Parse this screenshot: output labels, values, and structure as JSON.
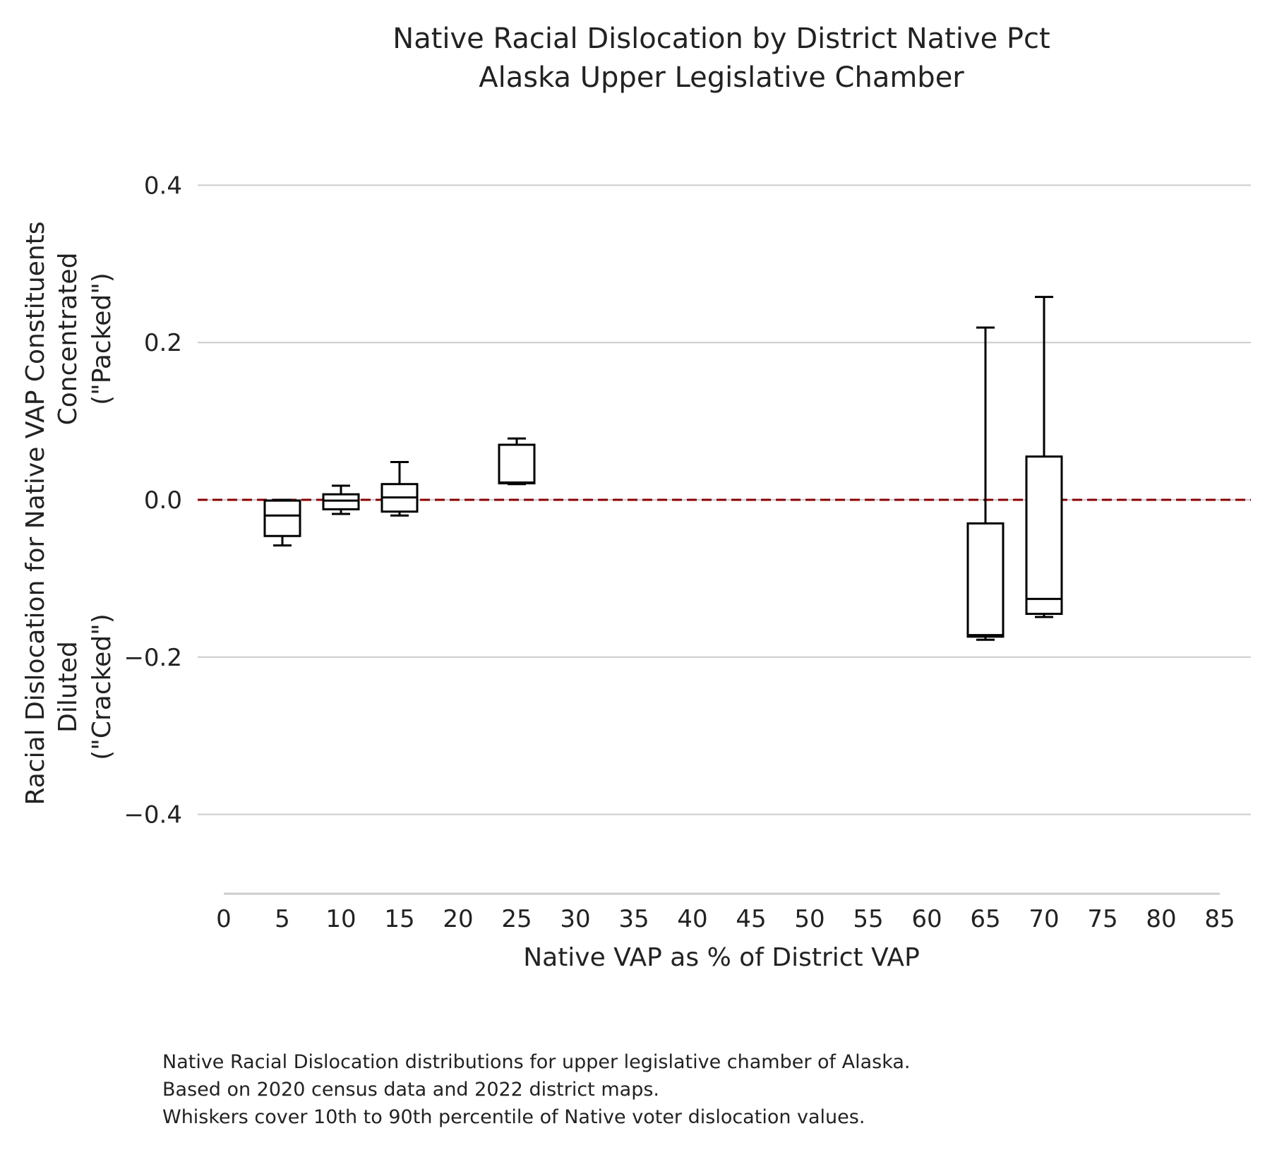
{
  "chart_data": {
    "type": "box",
    "title_lines": [
      "Native Racial Dislocation by District Native Pct",
      "Alaska Upper Legislative Chamber"
    ],
    "xlabel": "Native VAP as % of District VAP",
    "ylabel_lines": [
      "Racial Dislocation for Native VAP Constituents",
      "Diluted",
      "(\"Cracked\")",
      "Concentrated",
      "(\"Packed\")"
    ],
    "x_ticks": [
      0,
      5,
      10,
      15,
      20,
      25,
      30,
      35,
      40,
      45,
      50,
      55,
      60,
      65,
      70,
      75,
      80,
      85
    ],
    "y_ticks": [
      0.4,
      0.2,
      0.0,
      -0.2,
      -0.4
    ],
    "y_tick_labels": [
      "0.4",
      "0.2",
      "0.0",
      "−0.2",
      "−0.4"
    ],
    "xlim": [
      0,
      85
    ],
    "ylim": [
      -0.5,
      0.4
    ],
    "grid": "horizontal",
    "reference_line": {
      "y": 0.0,
      "color": "#8b0000",
      "style": "dashed"
    },
    "boxes": [
      {
        "x": 5,
        "whisker_low": -0.058,
        "q1": -0.046,
        "median": -0.02,
        "q3": -0.001,
        "whisker_high": 0.0
      },
      {
        "x": 10,
        "whisker_low": -0.018,
        "q1": -0.012,
        "median": -0.001,
        "q3": 0.007,
        "whisker_high": 0.018
      },
      {
        "x": 15,
        "whisker_low": -0.02,
        "q1": -0.015,
        "median": 0.003,
        "q3": 0.02,
        "whisker_high": 0.048
      },
      {
        "x": 25,
        "whisker_low": 0.02,
        "q1": 0.021,
        "median": 0.022,
        "q3": 0.07,
        "whisker_high": 0.078
      },
      {
        "x": 65,
        "whisker_low": -0.178,
        "q1": -0.174,
        "median": -0.172,
        "q3": -0.03,
        "whisker_high": 0.219
      },
      {
        "x": 70,
        "whisker_low": -0.149,
        "q1": -0.145,
        "median": -0.126,
        "q3": 0.055,
        "whisker_high": 0.258
      }
    ],
    "colors": {
      "box": "#000000",
      "grid": "#cccccc",
      "reference": "#8b0000"
    }
  },
  "caption_lines": [
    "Native Racial Dislocation distributions for upper legislative chamber of Alaska.",
    "Based on 2020 census data and 2022 district maps.",
    "Whiskers cover 10th to 90th percentile of Native voter dislocation values."
  ]
}
